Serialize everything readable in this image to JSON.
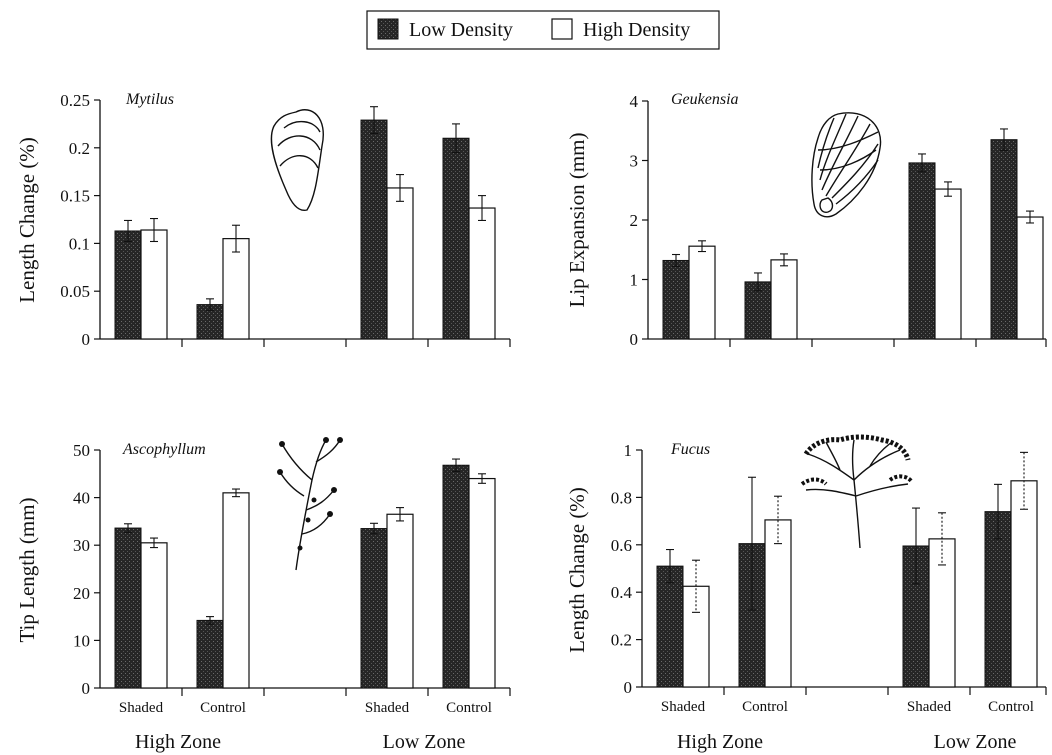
{
  "legend": {
    "position": "top-center",
    "low_label": "Low Density",
    "high_label": "High Density"
  },
  "colors": {
    "low": "#2a2a2a",
    "high": "#ffffff"
  },
  "icons": {
    "mytilus": "mussel-shell-drawing",
    "geukensia": "ribbed-mussel-shell-drawing",
    "ascophyllum": "seaweed-drawing",
    "fucus": "seaweed-drawing"
  },
  "chart_data": [
    {
      "type": "bar",
      "title": "Mytilus",
      "ylabel": "Length Change (%)",
      "ylim": [
        0,
        0.25
      ],
      "yticks": [
        "0",
        "0.05",
        "0.1",
        "0.15",
        "0.2",
        "0.25"
      ],
      "ytick_values": [
        0,
        0.05,
        0.1,
        0.15,
        0.2,
        0.25
      ],
      "categories": [
        "Shaded",
        "Control",
        "",
        "Shaded",
        "Control"
      ],
      "groups": [
        "High Zone",
        "Low Zone"
      ],
      "series": [
        {
          "name": "Low Density",
          "values": [
            0.113,
            0.036,
            null,
            0.229,
            0.21
          ],
          "errors": [
            0.011,
            0.006,
            null,
            0.014,
            0.015
          ]
        },
        {
          "name": "High Density",
          "values": [
            0.114,
            0.105,
            null,
            0.158,
            0.137
          ],
          "errors": [
            0.012,
            0.014,
            null,
            0.014,
            0.013
          ]
        }
      ]
    },
    {
      "type": "bar",
      "title": "Geukensia",
      "ylabel": "Lip Expansion (mm)",
      "ylim": [
        0,
        4
      ],
      "yticks": [
        "0",
        "1",
        "2",
        "3",
        "4"
      ],
      "ytick_values": [
        0,
        1,
        2,
        3,
        4
      ],
      "categories": [
        "Shaded",
        "Control",
        "",
        "Shaded",
        "Control"
      ],
      "groups": [
        "High Zone",
        "Low Zone"
      ],
      "series": [
        {
          "name": "Low Density",
          "values": [
            1.32,
            0.96,
            null,
            2.96,
            3.35
          ],
          "errors": [
            0.1,
            0.15,
            null,
            0.15,
            0.18
          ]
        },
        {
          "name": "High Density",
          "values": [
            1.56,
            1.33,
            null,
            2.52,
            2.05
          ],
          "errors": [
            0.09,
            0.1,
            null,
            0.12,
            0.1
          ]
        }
      ]
    },
    {
      "type": "bar",
      "title": "Ascophyllum",
      "ylabel": "Tip Length (mm)",
      "ylim": [
        0,
        50
      ],
      "yticks": [
        "0",
        "10",
        "20",
        "30",
        "40",
        "50"
      ],
      "ytick_values": [
        0,
        10,
        20,
        30,
        40,
        50
      ],
      "categories": [
        "Shaded",
        "Control",
        "",
        "Shaded",
        "Control"
      ],
      "groups": [
        "High Zone",
        "Low Zone"
      ],
      "series": [
        {
          "name": "Low Density",
          "values": [
            33.6,
            14.2,
            null,
            33.5,
            46.8
          ],
          "errors": [
            0.9,
            0.8,
            null,
            1.1,
            1.3
          ]
        },
        {
          "name": "High Density",
          "values": [
            30.5,
            41.0,
            null,
            36.5,
            44.0
          ],
          "errors": [
            1.0,
            0.8,
            null,
            1.4,
            1.0
          ]
        }
      ]
    },
    {
      "type": "bar",
      "title": "Fucus",
      "ylabel": "Length Change (%)",
      "ylim": [
        0,
        1
      ],
      "yticks": [
        "0",
        "0.2",
        "0.4",
        "0.6",
        "0.8",
        "1"
      ],
      "ytick_values": [
        0,
        0.2,
        0.4,
        0.6,
        0.8,
        1
      ],
      "categories": [
        "Shaded",
        "Control",
        "",
        "Shaded",
        "Control"
      ],
      "groups": [
        "High Zone",
        "Low Zone"
      ],
      "series": [
        {
          "name": "Low Density",
          "values": [
            0.51,
            0.605,
            null,
            0.595,
            0.74
          ],
          "errors": [
            0.07,
            0.28,
            null,
            0.16,
            0.115
          ]
        },
        {
          "name": "High Density",
          "values": [
            0.425,
            0.705,
            null,
            0.625,
            0.87
          ],
          "errors": [
            0.11,
            0.1,
            null,
            0.11,
            0.12
          ]
        }
      ]
    }
  ]
}
